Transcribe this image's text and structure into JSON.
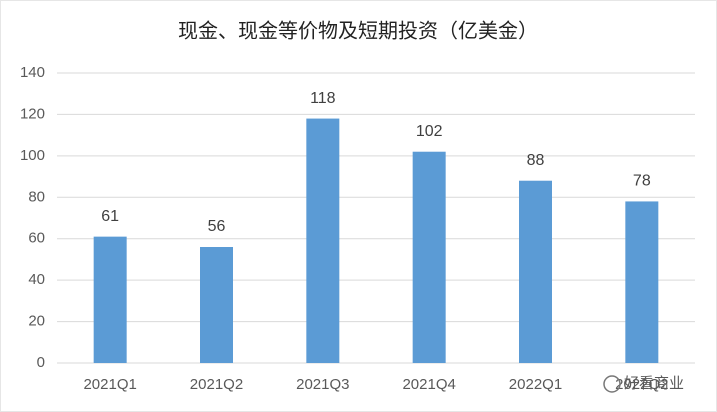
{
  "chart_data": {
    "type": "bar",
    "title": "现金、现金等价物及短期投资（亿美金）",
    "categories": [
      "2021Q1",
      "2021Q2",
      "2021Q3",
      "2021Q4",
      "2022Q1",
      "2022Q2"
    ],
    "values": [
      61,
      56,
      118,
      102,
      88,
      78
    ],
    "color": "#5b9bd5",
    "ylim": [
      0,
      140
    ],
    "yticks": [
      0,
      20,
      40,
      60,
      80,
      100,
      120,
      140
    ],
    "grid": true,
    "watermark": "好看商业"
  }
}
